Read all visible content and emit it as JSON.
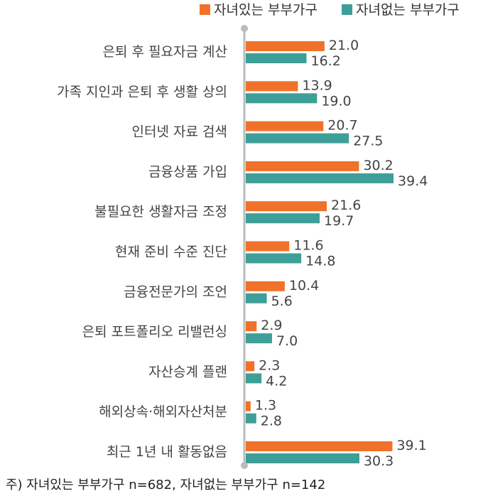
{
  "chart_data": {
    "type": "bar",
    "orientation": "horizontal",
    "categories": [
      "은퇴 후 필요자금 계산",
      "가족 지인과 은퇴 후 생활 상의",
      "인터넷 자료 검색",
      "금융상품 가입",
      "불필요한 생활자금 조정",
      "현재 준비 수준 진단",
      "금융전문가의 조언",
      "은퇴 포트폴리오 리밸런싱",
      "자산승계 플랜",
      "해외상속·해외자산처분",
      "최근 1년 내 활동없음"
    ],
    "series": [
      {
        "name": "자녀있는 부부가구",
        "color": "#F0722A",
        "values": [
          21.0,
          13.9,
          20.7,
          30.2,
          21.6,
          11.6,
          10.4,
          2.9,
          2.3,
          1.3,
          39.1
        ],
        "labels": [
          "21.0",
          "13.9",
          "20.7",
          "30.2",
          "21.6",
          "11.6",
          "10.4",
          "2.9",
          "2.3",
          "1.3",
          "39.1"
        ]
      },
      {
        "name": "자녀없는 부부가구",
        "color": "#3E9E98",
        "values": [
          16.2,
          19.0,
          27.5,
          39.4,
          19.7,
          14.8,
          5.6,
          7.0,
          4.2,
          2.8,
          30.3
        ],
        "labels": [
          "16.2",
          "19.0",
          "27.5",
          "39.4",
          "19.7",
          "14.8",
          "5.6",
          "7.0",
          "4.2",
          "2.8",
          "30.3"
        ]
      }
    ],
    "xlim": [
      0,
      40
    ],
    "grid": false,
    "legend_position": "top-right",
    "axis_color": "#BBBBBB",
    "leader_color": "#BBBBBB"
  },
  "footnote": "주) 자녀있는 부부가구 n=682, 자녀없는 부부가구 n=142"
}
